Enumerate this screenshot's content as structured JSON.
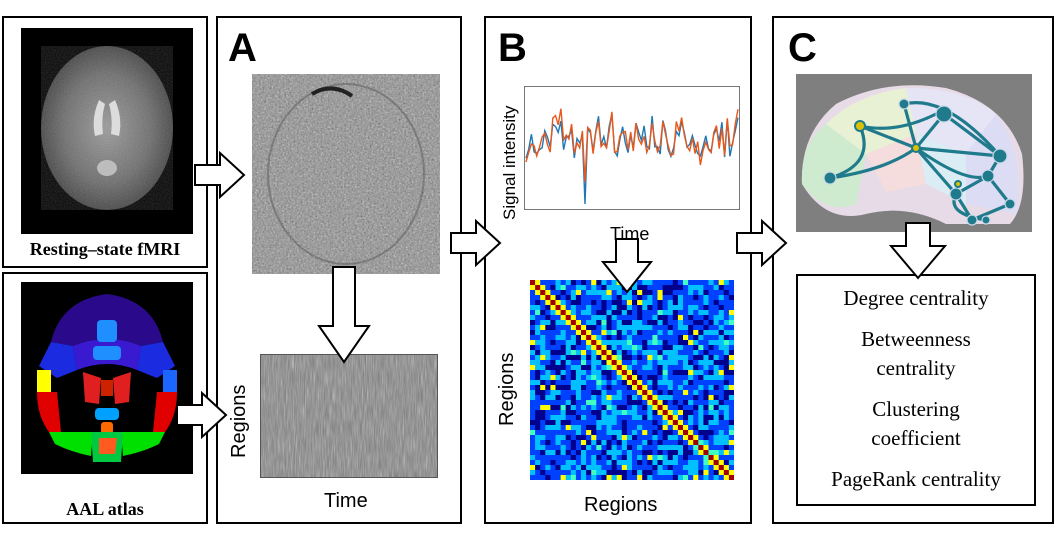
{
  "inputs": {
    "fmri_caption": "Resting–state fMRI",
    "atlas_caption": "AAL atlas"
  },
  "panel_a": {
    "letter": "A",
    "matrix_ylabel": "Regions",
    "matrix_xlabel": "Time"
  },
  "panel_b": {
    "letter": "B",
    "signal_ylabel": "Signal intensity",
    "signal_xlabel": "Time",
    "matrix_ylabel": "Regions",
    "matrix_xlabel": "Regions",
    "series_colors": [
      "#1f77b4",
      "#e8581c"
    ]
  },
  "panel_c": {
    "letter": "C",
    "measures": [
      "Degree centrality",
      "Betweenness centrality",
      "Clustering coefficient",
      "PageRank centrality"
    ]
  },
  "colors": {
    "atlas_regions": [
      "#2a0a8a",
      "#3a1ad0",
      "#1f8fff",
      "#e00000",
      "#ff2a00",
      "#ffff00",
      "#00e000",
      "#00a0ff"
    ],
    "network_node": "#1f7a8c",
    "network_hub": "#d9c000"
  }
}
